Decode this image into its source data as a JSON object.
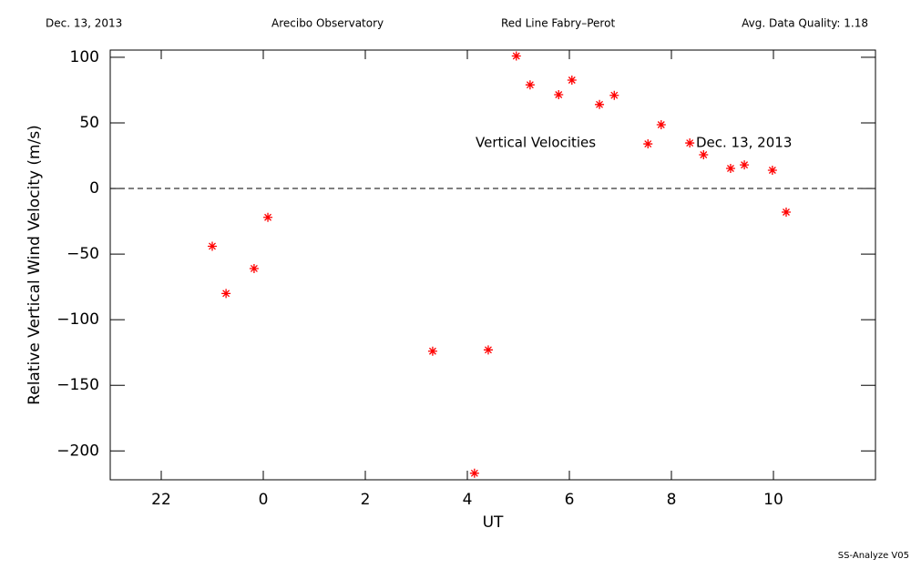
{
  "chart_data": {
    "type": "scatter",
    "header": [
      "Dec. 13, 2013",
      "Arecibo Observatory",
      "Red Line Fabry–Perot",
      "Avg. Data Quality: 1.18"
    ],
    "xlabel": "UT",
    "ylabel": "Relative Vertical Wind Velocity (m/s)",
    "annotations": [
      "Vertical Velocities",
      "Dec. 13, 2013"
    ],
    "footer": "SS-Analyze V05",
    "xlim": [
      -3,
      12
    ],
    "xticks": [
      {
        "value": -2,
        "label": "22"
      },
      0,
      2,
      4,
      6,
      8,
      10
    ],
    "ylim": [
      -222,
      105.5
    ],
    "yticks": [
      100,
      50,
      0,
      {
        "value": -50,
        "label": "−50"
      },
      {
        "value": -100,
        "label": "−100"
      },
      {
        "value": -150,
        "label": "−150"
      },
      {
        "value": -200,
        "label": "−200"
      }
    ],
    "reference_line": 0,
    "marker": "asterisk",
    "series": [
      {
        "color": "#ff0000",
        "x": [
          -1.0,
          -0.73,
          -0.18,
          0.09,
          3.32,
          4.14,
          4.41,
          4.96,
          5.23,
          5.79,
          6.05,
          6.59,
          6.88,
          7.54,
          7.8,
          8.36,
          8.63,
          9.16,
          9.43,
          9.98,
          10.25
        ],
        "values": [
          -44,
          -80,
          -61,
          -22,
          -124,
          -217,
          -123,
          101,
          79,
          71.5,
          82.6,
          64,
          71,
          34,
          48.6,
          34.7,
          25.7,
          15.3,
          18,
          13.9,
          -18
        ]
      }
    ]
  }
}
